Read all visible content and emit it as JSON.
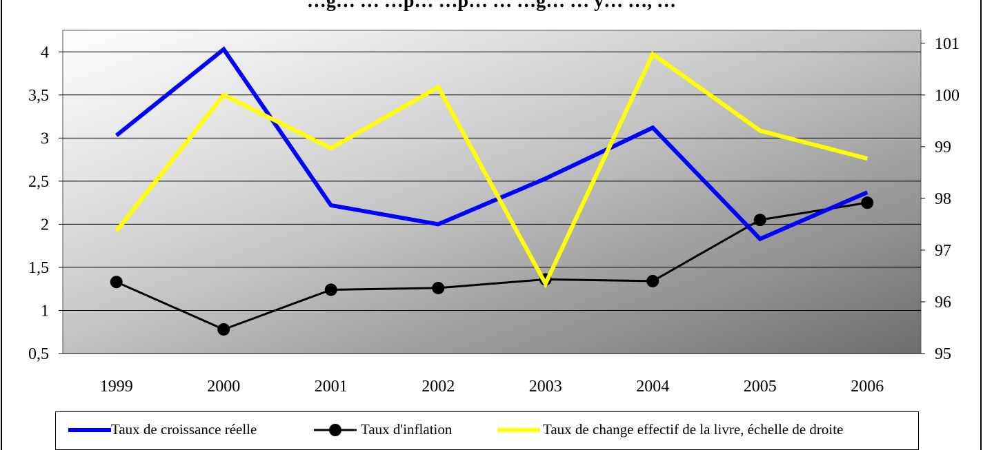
{
  "chart_data": {
    "type": "line",
    "title": "…g… … …p… …p… … …g… … y… …, …",
    "categories": [
      "1999",
      "2000",
      "2001",
      "2002",
      "2003",
      "2004",
      "2005",
      "2006"
    ],
    "y_left": {
      "min": 0.5,
      "max": 4.25,
      "ticks": [
        "0,5",
        "1",
        "1,5",
        "2",
        "2,5",
        "3",
        "3,5",
        "4"
      ],
      "tick_values": [
        0.5,
        1,
        1.5,
        2,
        2.5,
        3,
        3.5,
        4
      ]
    },
    "y_right": {
      "min": 95,
      "max": 101.25,
      "ticks": [
        "95",
        "96",
        "97",
        "98",
        "99",
        "100",
        "101"
      ],
      "tick_values": [
        95,
        96,
        97,
        98,
        99,
        100,
        101
      ]
    },
    "grid": true,
    "legend_position": "bottom",
    "series": [
      {
        "name": "Taux de croissance réelle",
        "axis": "left",
        "color": "#0000ff",
        "marker": "none",
        "values": [
          3.03,
          4.03,
          2.22,
          2.0,
          2.53,
          3.12,
          1.83,
          2.37
        ]
      },
      {
        "name": "Taux d'inflation",
        "axis": "left",
        "color": "#000000",
        "marker": "circle",
        "values": [
          1.33,
          0.78,
          1.24,
          1.26,
          1.36,
          1.34,
          2.05,
          2.25
        ]
      },
      {
        "name": "Taux de change effectif de la livre, échelle de droite",
        "axis": "right",
        "color": "#ffff00",
        "marker": "none",
        "values": [
          97.37,
          100.0,
          98.97,
          100.15,
          96.35,
          100.79,
          99.31,
          98.77
        ]
      }
    ]
  }
}
